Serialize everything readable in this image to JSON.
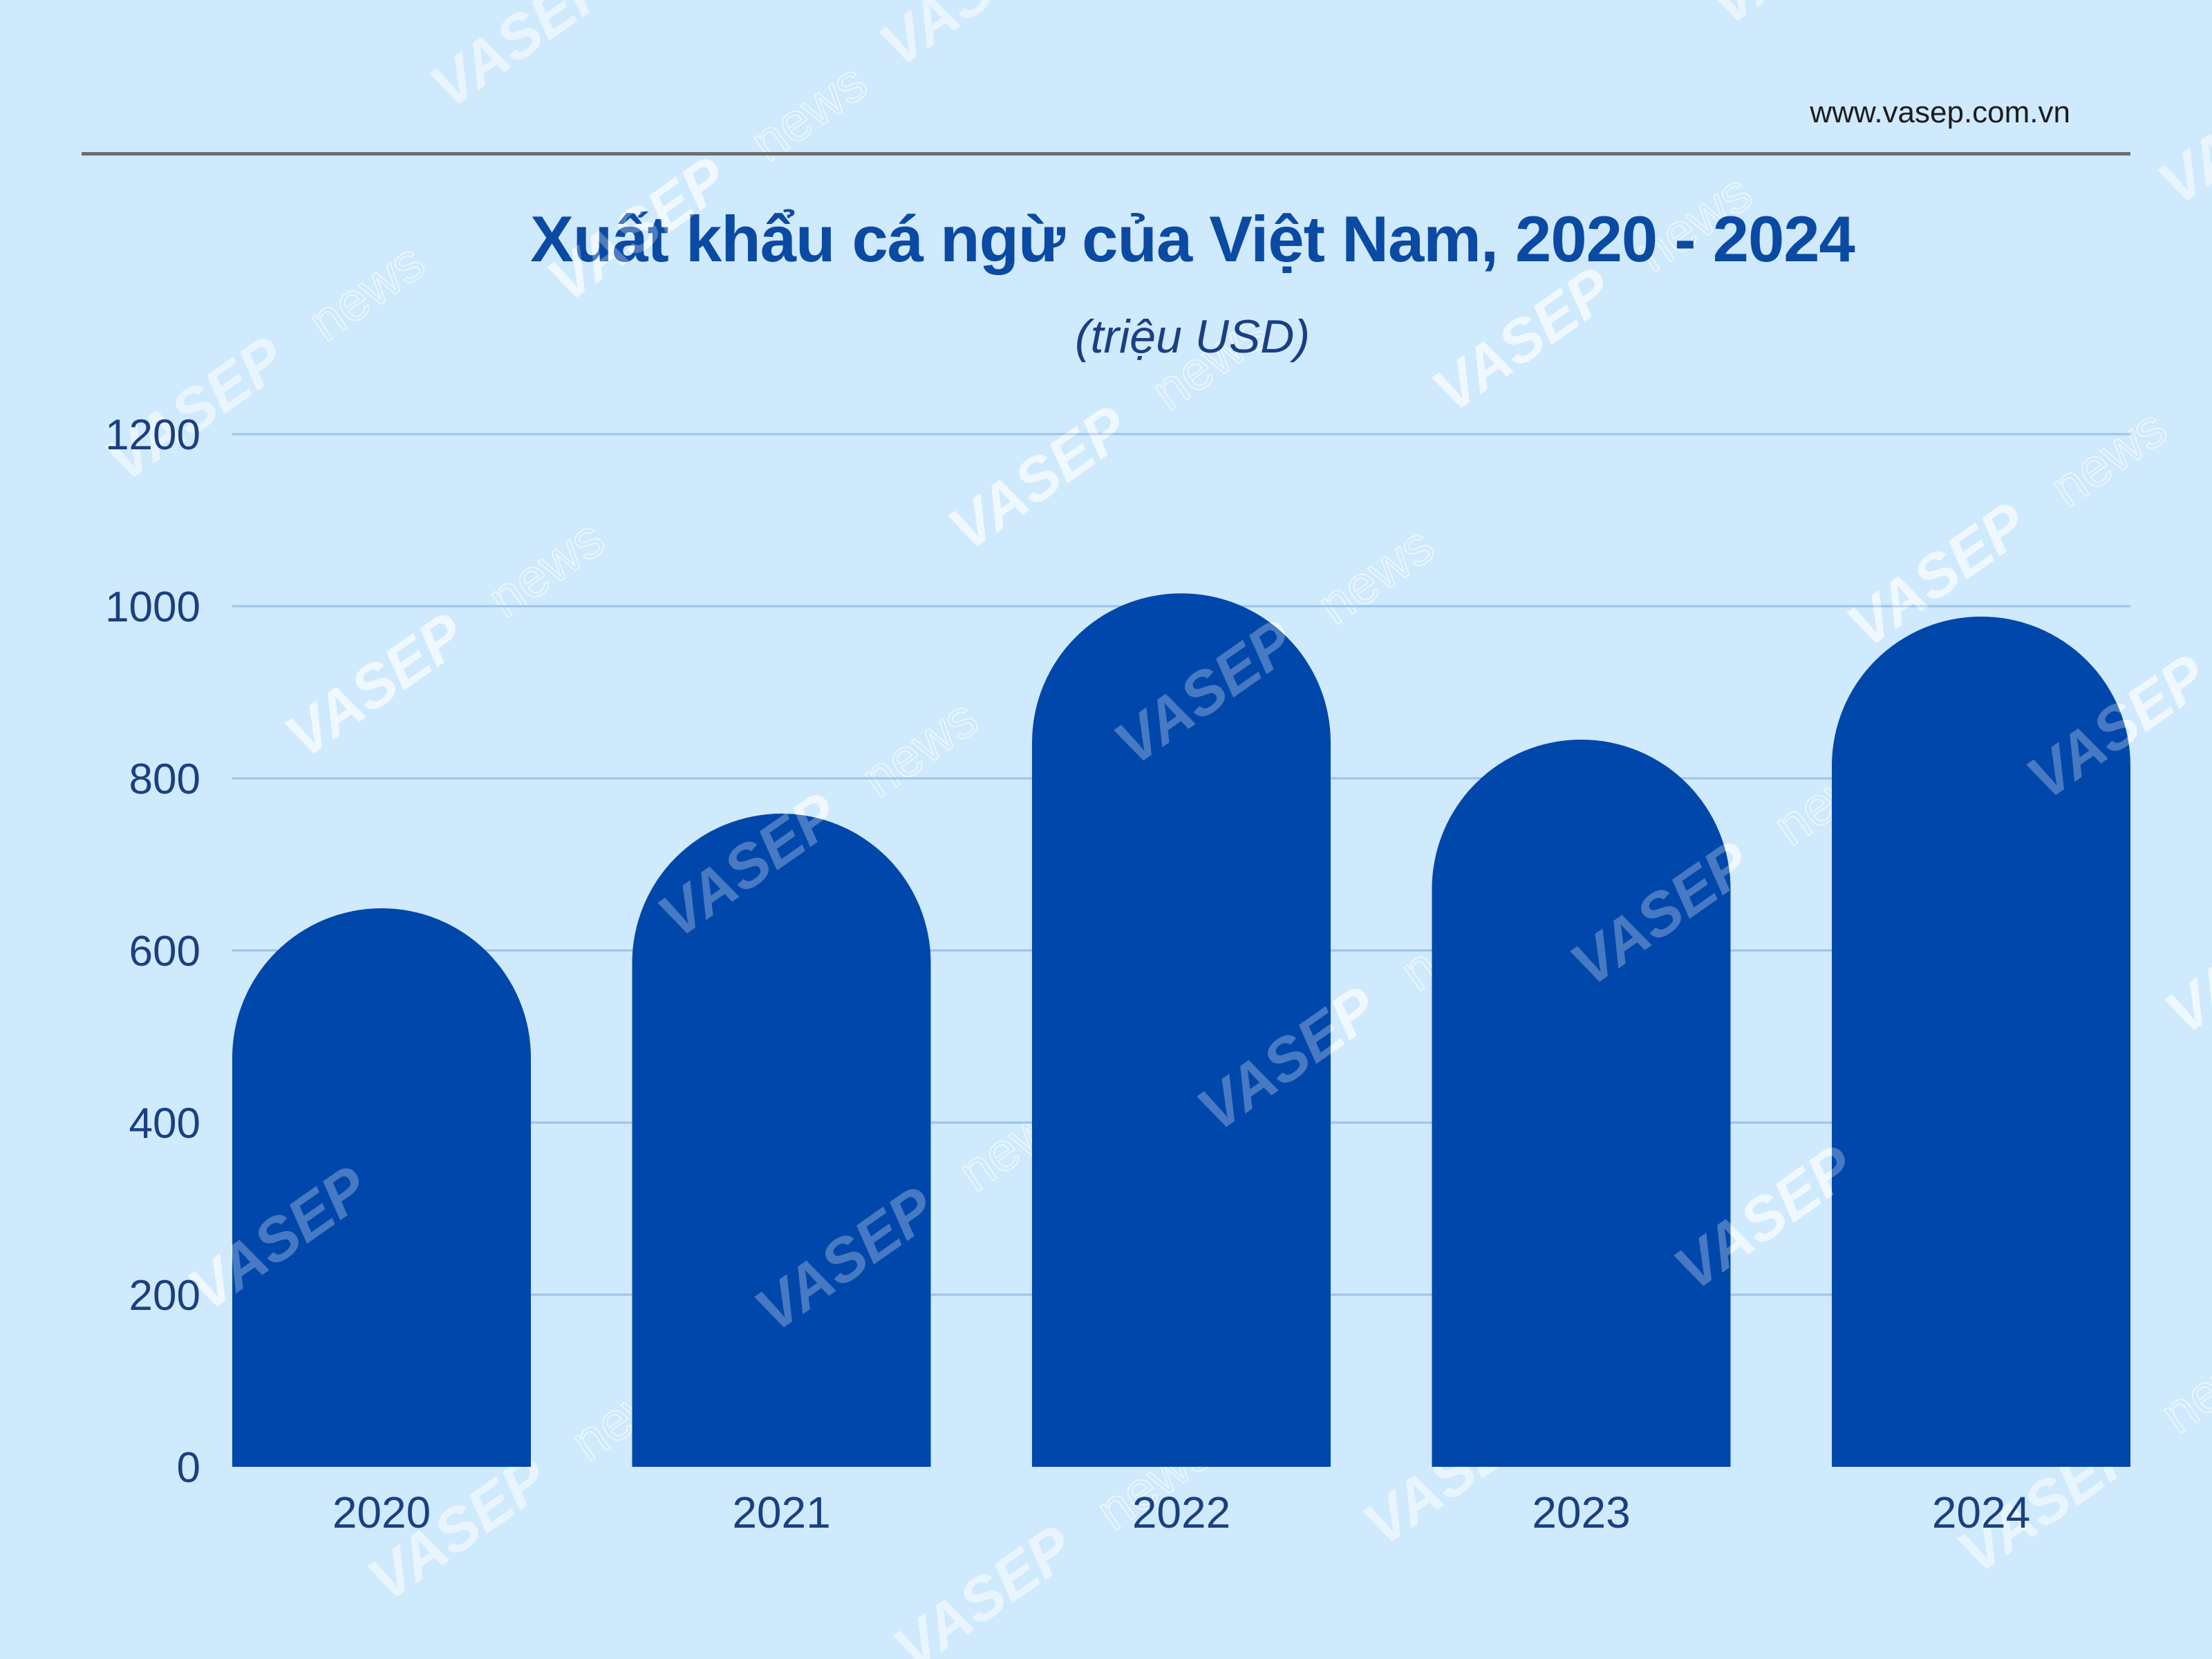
{
  "header": {
    "website": "www.vasep.com.vn"
  },
  "watermark": {
    "brand": "VASEP",
    "suffix": "news"
  },
  "chart_data": {
    "type": "bar",
    "title": "Xuất khẩu cá ngừ của Việt Nam, 2020 - 2024",
    "subtitle": "(triệu USD)",
    "xlabel": "",
    "ylabel": "",
    "categories": [
      "2020",
      "2021",
      "2022",
      "2023",
      "2024"
    ],
    "values": [
      649,
      759,
      1015,
      845,
      988
    ],
    "ylim": [
      0,
      1200
    ],
    "yticks": [
      0,
      200,
      400,
      600,
      800,
      1000,
      1200
    ],
    "grid": true,
    "bar_style": "rounded-top",
    "colors": {
      "bar": "#0047ab",
      "grid": "#9cc3e6",
      "background": "#cfe9fd",
      "tick_label": "#1a3f82",
      "title": "#0b4aa3"
    }
  }
}
